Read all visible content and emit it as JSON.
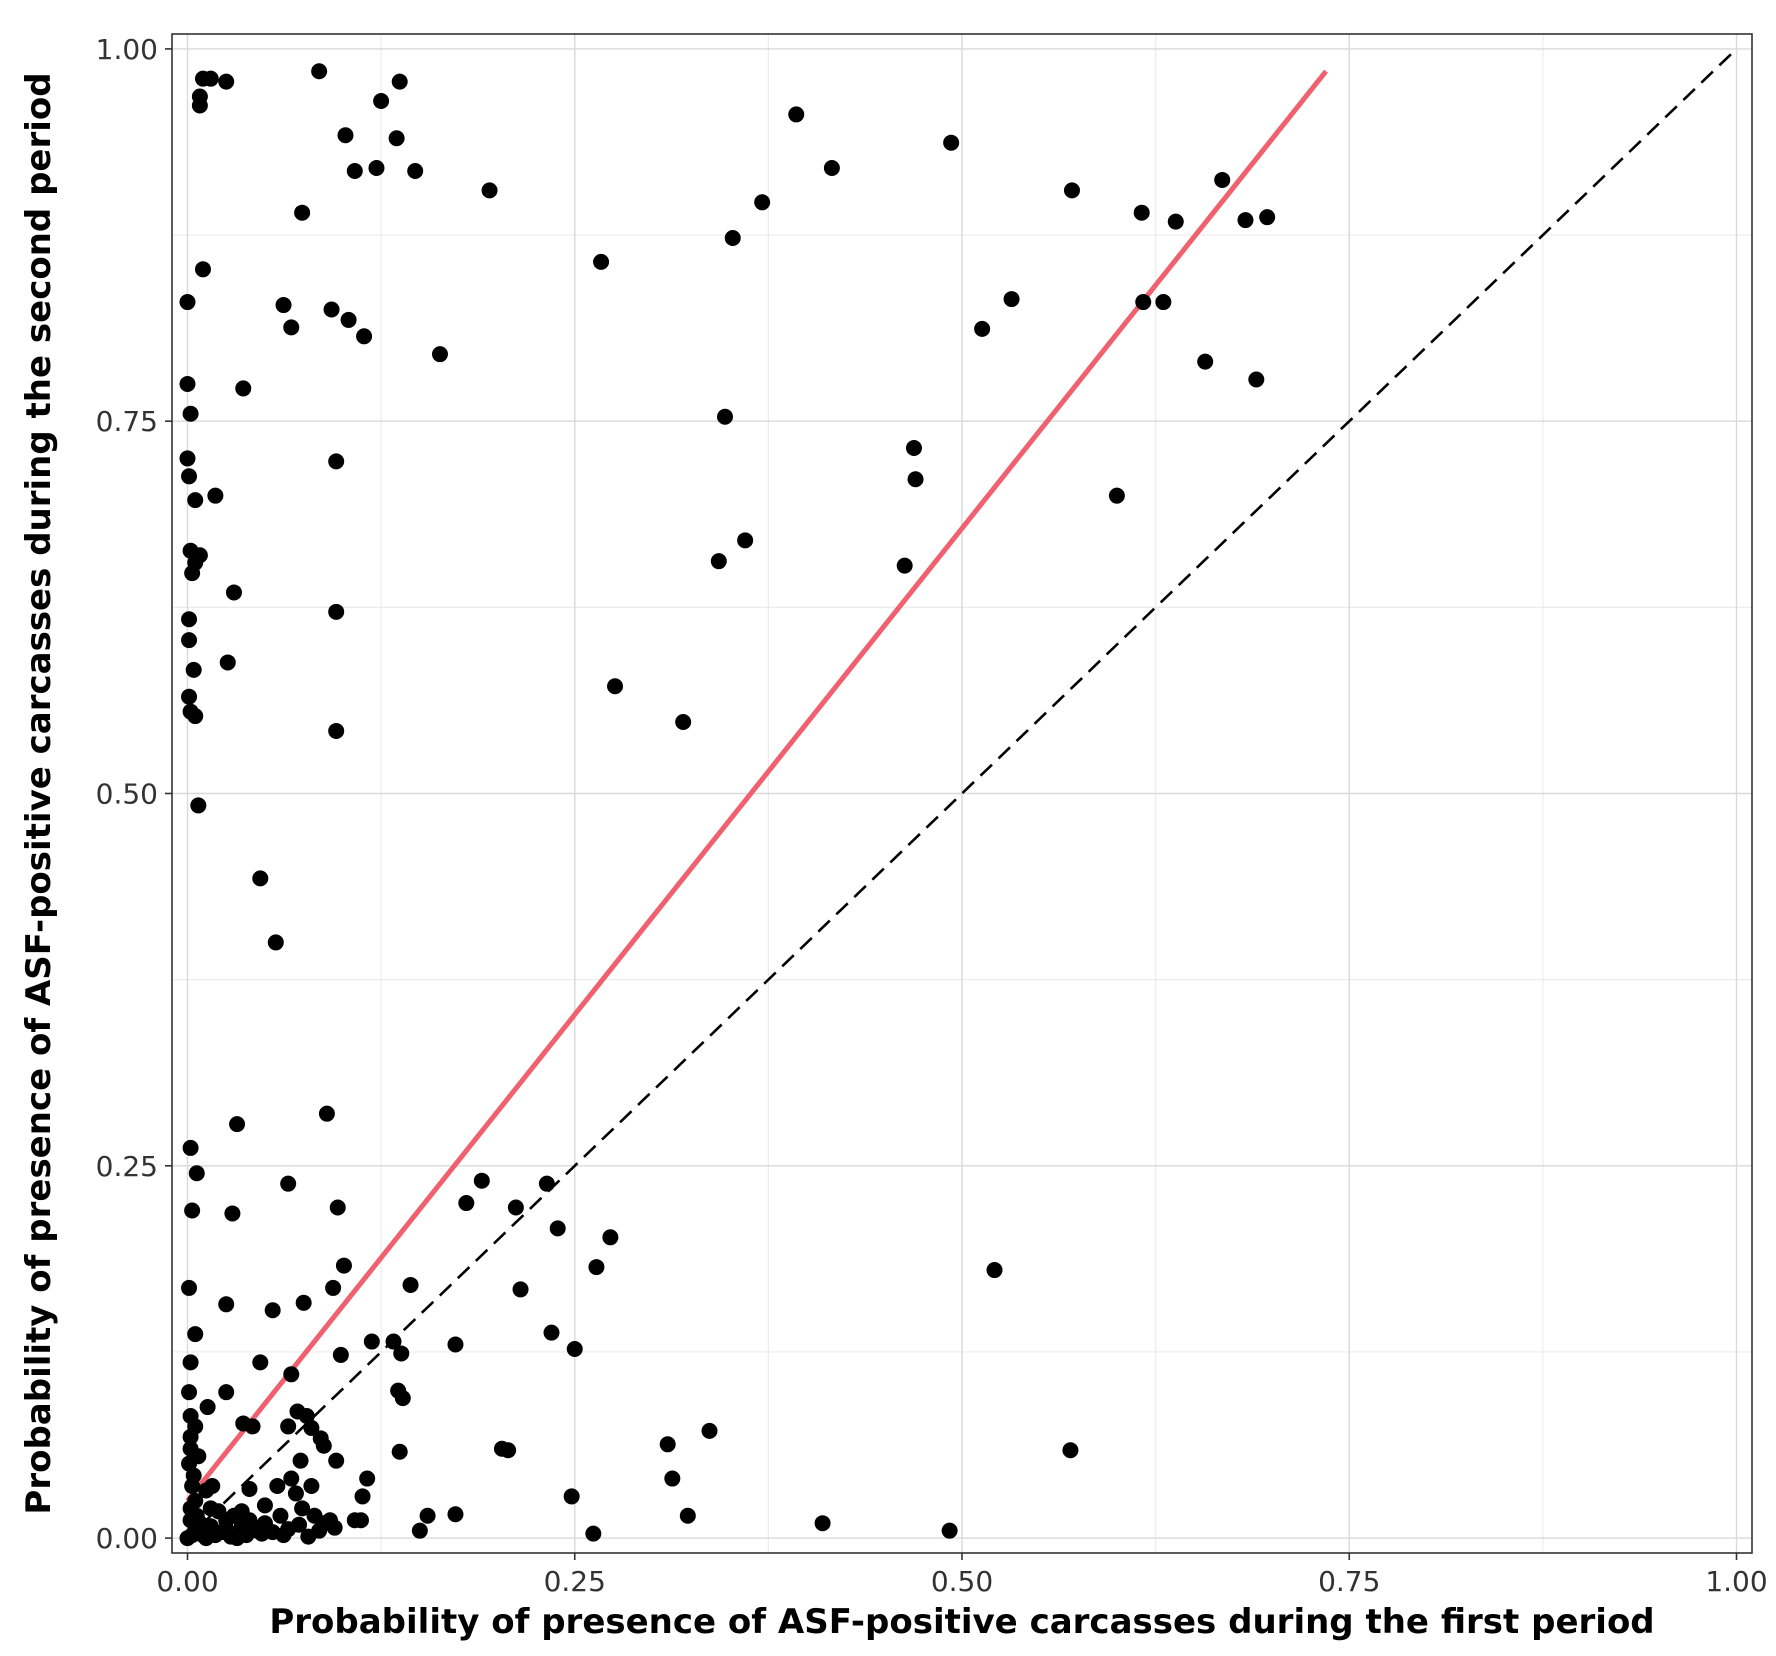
{
  "chart_data": {
    "type": "scatter",
    "title": "",
    "xlabel": "Probability of presence of ASF-positive carcasses during the first period",
    "ylabel": "Probability of presence of ASF-positive carcasses during the second period",
    "xlim": [
      -0.01,
      1.01
    ],
    "ylim": [
      -0.01,
      1.01
    ],
    "x_ticks": [
      0.0,
      0.25,
      0.5,
      0.75,
      1.0
    ],
    "x_tick_labels": [
      "0.00",
      "0.25",
      "0.50",
      "0.75",
      "1.00"
    ],
    "y_ticks": [
      0.0,
      0.25,
      0.5,
      0.75,
      1.0
    ],
    "y_tick_labels": [
      "0.00",
      "0.25",
      "0.50",
      "0.75",
      "1.00"
    ],
    "grid": true,
    "colors": {
      "points": "#000000",
      "fit_line": "#f0606e",
      "identity_line": "#000000",
      "grid": "#d9d9d9",
      "frame": "#333333"
    },
    "fit_line": {
      "x": [
        0.0,
        0.735
      ],
      "y": [
        0.025,
        0.985
      ]
    },
    "identity_line": {
      "x": [
        0.0,
        1.0
      ],
      "y": [
        0.0,
        1.0
      ]
    },
    "points": [
      [
        0.01,
        0.98
      ],
      [
        0.015,
        0.98
      ],
      [
        0.025,
        0.978
      ],
      [
        0.085,
        0.985
      ],
      [
        0.137,
        0.978
      ],
      [
        0.125,
        0.965
      ],
      [
        0.008,
        0.968
      ],
      [
        0.008,
        0.962
      ],
      [
        0.102,
        0.942
      ],
      [
        0.135,
        0.94
      ],
      [
        0.108,
        0.918
      ],
      [
        0.122,
        0.92
      ],
      [
        0.147,
        0.918
      ],
      [
        0.195,
        0.905
      ],
      [
        0.393,
        0.956
      ],
      [
        0.416,
        0.92
      ],
      [
        0.493,
        0.937
      ],
      [
        0.074,
        0.89
      ],
      [
        0.371,
        0.897
      ],
      [
        0.571,
        0.905
      ],
      [
        0.616,
        0.89
      ],
      [
        0.638,
        0.884
      ],
      [
        0.668,
        0.912
      ],
      [
        0.683,
        0.885
      ],
      [
        0.697,
        0.887
      ],
      [
        0.352,
        0.873
      ],
      [
        0.267,
        0.857
      ],
      [
        0.01,
        0.852
      ],
      [
        0.0,
        0.83
      ],
      [
        0.062,
        0.828
      ],
      [
        0.067,
        0.813
      ],
      [
        0.093,
        0.825
      ],
      [
        0.104,
        0.818
      ],
      [
        0.114,
        0.807
      ],
      [
        0.163,
        0.795
      ],
      [
        0.513,
        0.812
      ],
      [
        0.532,
        0.832
      ],
      [
        0.617,
        0.83
      ],
      [
        0.63,
        0.83
      ],
      [
        0.657,
        0.79
      ],
      [
        0.69,
        0.778
      ],
      [
        0.0,
        0.775
      ],
      [
        0.036,
        0.772
      ],
      [
        0.002,
        0.755
      ],
      [
        0.347,
        0.753
      ],
      [
        0.469,
        0.732
      ],
      [
        0.0,
        0.725
      ],
      [
        0.001,
        0.713
      ],
      [
        0.096,
        0.723
      ],
      [
        0.47,
        0.711
      ],
      [
        0.005,
        0.697
      ],
      [
        0.018,
        0.7
      ],
      [
        0.6,
        0.7
      ],
      [
        0.002,
        0.663
      ],
      [
        0.008,
        0.66
      ],
      [
        0.005,
        0.655
      ],
      [
        0.003,
        0.648
      ],
      [
        0.343,
        0.656
      ],
      [
        0.36,
        0.67
      ],
      [
        0.463,
        0.653
      ],
      [
        0.03,
        0.635
      ],
      [
        0.096,
        0.622
      ],
      [
        0.001,
        0.617
      ],
      [
        0.001,
        0.603
      ],
      [
        0.004,
        0.583
      ],
      [
        0.026,
        0.588
      ],
      [
        0.276,
        0.572
      ],
      [
        0.001,
        0.565
      ],
      [
        0.002,
        0.555
      ],
      [
        0.005,
        0.552
      ],
      [
        0.32,
        0.548
      ],
      [
        0.096,
        0.542
      ],
      [
        0.007,
        0.492
      ],
      [
        0.047,
        0.443
      ],
      [
        0.057,
        0.4
      ],
      [
        0.09,
        0.285
      ],
      [
        0.032,
        0.278
      ],
      [
        0.002,
        0.262
      ],
      [
        0.006,
        0.245
      ],
      [
        0.065,
        0.238
      ],
      [
        0.003,
        0.22
      ],
      [
        0.029,
        0.218
      ],
      [
        0.097,
        0.222
      ],
      [
        0.18,
        0.225
      ],
      [
        0.19,
        0.24
      ],
      [
        0.212,
        0.222
      ],
      [
        0.232,
        0.238
      ],
      [
        0.239,
        0.208
      ],
      [
        0.273,
        0.202
      ],
      [
        0.215,
        0.167
      ],
      [
        0.264,
        0.182
      ],
      [
        0.144,
        0.17
      ],
      [
        0.101,
        0.183
      ],
      [
        0.094,
        0.168
      ],
      [
        0.001,
        0.168
      ],
      [
        0.025,
        0.157
      ],
      [
        0.055,
        0.153
      ],
      [
        0.075,
        0.158
      ],
      [
        0.005,
        0.137
      ],
      [
        0.119,
        0.132
      ],
      [
        0.133,
        0.132
      ],
      [
        0.138,
        0.124
      ],
      [
        0.099,
        0.123
      ],
      [
        0.173,
        0.13
      ],
      [
        0.235,
        0.138
      ],
      [
        0.25,
        0.127
      ],
      [
        0.521,
        0.18
      ],
      [
        0.002,
        0.118
      ],
      [
        0.047,
        0.118
      ],
      [
        0.067,
        0.11
      ],
      [
        0.001,
        0.098
      ],
      [
        0.025,
        0.098
      ],
      [
        0.136,
        0.099
      ],
      [
        0.139,
        0.094
      ],
      [
        0.013,
        0.088
      ],
      [
        0.071,
        0.085
      ],
      [
        0.077,
        0.082
      ],
      [
        0.036,
        0.077
      ],
      [
        0.002,
        0.082
      ],
      [
        0.005,
        0.075
      ],
      [
        0.042,
        0.075
      ],
      [
        0.065,
        0.075
      ],
      [
        0.08,
        0.074
      ],
      [
        0.086,
        0.067
      ],
      [
        0.088,
        0.062
      ],
      [
        0.096,
        0.052
      ],
      [
        0.002,
        0.068
      ],
      [
        0.002,
        0.06
      ],
      [
        0.007,
        0.055
      ],
      [
        0.073,
        0.052
      ],
      [
        0.067,
        0.04
      ],
      [
        0.08,
        0.035
      ],
      [
        0.137,
        0.058
      ],
      [
        0.203,
        0.06
      ],
      [
        0.207,
        0.059
      ],
      [
        0.31,
        0.063
      ],
      [
        0.337,
        0.072
      ],
      [
        0.57,
        0.059
      ],
      [
        0.116,
        0.04
      ],
      [
        0.113,
        0.028
      ],
      [
        0.248,
        0.028
      ],
      [
        0.313,
        0.04
      ],
      [
        0.058,
        0.035
      ],
      [
        0.04,
        0.033
      ],
      [
        0.003,
        0.035
      ],
      [
        0.012,
        0.032
      ],
      [
        0.005,
        0.025
      ],
      [
        0.07,
        0.03
      ],
      [
        0.05,
        0.022
      ],
      [
        0.074,
        0.02
      ],
      [
        0.02,
        0.018
      ],
      [
        0.03,
        0.015
      ],
      [
        0.04,
        0.012
      ],
      [
        0.06,
        0.015
      ],
      [
        0.082,
        0.015
      ],
      [
        0.092,
        0.012
      ],
      [
        0.108,
        0.012
      ],
      [
        0.112,
        0.012
      ],
      [
        0.155,
        0.015
      ],
      [
        0.173,
        0.016
      ],
      [
        0.323,
        0.015
      ],
      [
        0.002,
        0.012
      ],
      [
        0.008,
        0.01
      ],
      [
        0.015,
        0.008
      ],
      [
        0.025,
        0.006
      ],
      [
        0.035,
        0.008
      ],
      [
        0.045,
        0.005
      ],
      [
        0.055,
        0.004
      ],
      [
        0.065,
        0.006
      ],
      [
        0.072,
        0.009
      ],
      [
        0.085,
        0.005
      ],
      [
        0.095,
        0.007
      ],
      [
        0.15,
        0.005
      ],
      [
        0.262,
        0.003
      ],
      [
        0.41,
        0.01
      ],
      [
        0.492,
        0.005
      ],
      [
        0.003,
        0.002
      ],
      [
        0.01,
        0.003
      ],
      [
        0.018,
        0.002
      ],
      [
        0.028,
        0.001
      ],
      [
        0.038,
        0.002
      ],
      [
        0.048,
        0.003
      ],
      [
        0.0,
        0.0
      ],
      [
        0.005,
        0.005
      ],
      [
        0.012,
        0.0
      ],
      [
        0.022,
        0.004
      ],
      [
        0.032,
        0.0
      ],
      [
        0.002,
        0.02
      ],
      [
        0.006,
        0.015
      ],
      [
        0.015,
        0.02
      ],
      [
        0.025,
        0.012
      ],
      [
        0.035,
        0.018
      ],
      [
        0.01,
        0.002
      ],
      [
        0.05,
        0.01
      ],
      [
        0.062,
        0.002
      ],
      [
        0.078,
        0.001
      ],
      [
        0.088,
        0.01
      ],
      [
        0.004,
        0.042
      ],
      [
        0.001,
        0.05
      ],
      [
        0.016,
        0.035
      ]
    ]
  }
}
